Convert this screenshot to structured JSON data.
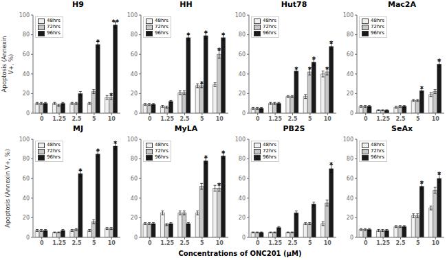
{
  "xlabel": "Concentrations of ONC201 (μM)",
  "chart_data": [
    {
      "type": "bar",
      "title": "H9",
      "ylabel": "Apoptosis (Annexin\nV+, %)",
      "categories": [
        "0",
        "1.25",
        "2.5",
        "5",
        "10"
      ],
      "series": [
        {
          "name": "48hrs",
          "color": "#f0f0f0",
          "values": [
            10,
            10,
            10,
            10,
            16
          ],
          "errors": [
            1,
            1,
            1,
            1,
            2
          ]
        },
        {
          "name": "72hrs",
          "color": "#c8c8c8",
          "values": [
            10,
            8,
            10,
            22,
            16
          ],
          "errors": [
            1,
            1,
            1,
            2,
            2
          ]
        },
        {
          "name": "96hrs",
          "color": "#1a1a1a",
          "values": [
            10,
            10,
            20,
            70,
            90
          ],
          "errors": [
            1,
            1,
            2,
            3,
            3
          ]
        }
      ],
      "annotations": [
        {
          "text": "*",
          "category": "5",
          "series": "96hrs"
        },
        {
          "text": "*",
          "category": "10",
          "series": "72hrs"
        },
        {
          "text": "**",
          "category": "10",
          "series": "96hrs"
        }
      ],
      "ylim": [
        0,
        100
      ],
      "yticks": [
        0,
        20,
        40,
        60,
        80,
        100
      ],
      "legend": "upper left",
      "grid": false
    },
    {
      "type": "bar",
      "title": "HH",
      "categories": [
        "0",
        "1.25",
        "2.5",
        "5",
        "10"
      ],
      "series": [
        {
          "name": "48hrs",
          "color": "#f0f0f0",
          "values": [
            9,
            7,
            21,
            28,
            29
          ],
          "errors": [
            1,
            1,
            2,
            2,
            2
          ]
        },
        {
          "name": "72hrs",
          "color": "#c8c8c8",
          "values": [
            9,
            6,
            21,
            28,
            60
          ],
          "errors": [
            1,
            1,
            2,
            2,
            4
          ]
        },
        {
          "name": "96hrs",
          "color": "#1a1a1a",
          "values": [
            9,
            12,
            77,
            79,
            77
          ],
          "errors": [
            1,
            1,
            3,
            3,
            3
          ]
        }
      ],
      "annotations": [
        {
          "text": "*",
          "category": "2.5",
          "series": "96hrs"
        },
        {
          "text": "*",
          "category": "5",
          "series": "72hrs"
        },
        {
          "text": "*",
          "category": "5",
          "series": "96hrs"
        },
        {
          "text": "*",
          "category": "10",
          "series": "72hrs"
        },
        {
          "text": "*",
          "category": "10",
          "series": "96hrs"
        }
      ],
      "ylim": [
        0,
        100
      ],
      "yticks": [
        0,
        20,
        40,
        60,
        80,
        100
      ],
      "legend": "upper left",
      "grid": false
    },
    {
      "type": "bar",
      "title": "Hut78",
      "categories": [
        "0",
        "1.25",
        "2.5",
        "5",
        "10"
      ],
      "series": [
        {
          "name": "48hrs",
          "color": "#f0f0f0",
          "values": [
            5,
            10,
            17,
            17,
            40
          ],
          "errors": [
            1,
            1,
            1,
            2,
            3
          ]
        },
        {
          "name": "72hrs",
          "color": "#c8c8c8",
          "values": [
            5,
            10,
            17,
            42,
            42
          ],
          "errors": [
            1,
            1,
            1,
            3,
            3
          ]
        },
        {
          "name": "96hrs",
          "color": "#1a1a1a",
          "values": [
            5,
            10,
            43,
            52,
            68
          ],
          "errors": [
            1,
            1,
            2,
            3,
            3
          ]
        }
      ],
      "annotations": [
        {
          "text": "*",
          "category": "2.5",
          "series": "96hrs"
        },
        {
          "text": "*",
          "category": "5",
          "series": "72hrs"
        },
        {
          "text": "*",
          "category": "5",
          "series": "96hrs"
        },
        {
          "text": "*",
          "category": "10",
          "series": "72hrs"
        },
        {
          "text": "*",
          "category": "10",
          "series": "96hrs"
        }
      ],
      "ylim": [
        0,
        100
      ],
      "yticks": [
        0,
        20,
        40,
        60,
        80,
        100
      ],
      "legend": "upper left",
      "grid": false
    },
    {
      "type": "bar",
      "title": "Mac2A",
      "categories": [
        "0",
        "1.25",
        "2.5",
        "5",
        "10"
      ],
      "series": [
        {
          "name": "48hrs",
          "color": "#f0f0f0",
          "values": [
            7,
            3,
            6,
            13,
            19
          ],
          "errors": [
            1,
            0.5,
            1,
            1,
            2
          ]
        },
        {
          "name": "72hrs",
          "color": "#c8c8c8",
          "values": [
            7,
            3,
            7,
            13,
            22
          ],
          "errors": [
            1,
            0.5,
            1,
            1,
            2
          ]
        },
        {
          "name": "96hrs",
          "color": "#1a1a1a",
          "values": [
            7,
            3,
            7,
            23,
            50
          ],
          "errors": [
            1,
            0.5,
            1,
            2,
            3
          ]
        }
      ],
      "annotations": [
        {
          "text": "*",
          "category": "5",
          "series": "96hrs"
        },
        {
          "text": "*",
          "category": "10",
          "series": "96hrs"
        }
      ],
      "ylim": [
        0,
        100
      ],
      "yticks": [
        0,
        20,
        40,
        60,
        80,
        100
      ],
      "legend": "upper left",
      "grid": false
    },
    {
      "type": "bar",
      "title": "MJ",
      "ylabel": "Apoptosis (Annexin V+, %)",
      "categories": [
        "0",
        "1.25",
        "2.5",
        "5",
        "10"
      ],
      "series": [
        {
          "name": "48hrs",
          "color": "#f0f0f0",
          "values": [
            7,
            5,
            7,
            7,
            9
          ],
          "errors": [
            1,
            0.5,
            1,
            1,
            1
          ]
        },
        {
          "name": "72hrs",
          "color": "#c8c8c8",
          "values": [
            7,
            5,
            8,
            16,
            9
          ],
          "errors": [
            1,
            0.5,
            1,
            2,
            1
          ]
        },
        {
          "name": "96hrs",
          "color": "#1a1a1a",
          "values": [
            7,
            7,
            65,
            85,
            93
          ],
          "errors": [
            1,
            1,
            3,
            3,
            3
          ]
        }
      ],
      "annotations": [
        {
          "text": "*",
          "category": "2.5",
          "series": "96hrs"
        },
        {
          "text": "*",
          "category": "5",
          "series": "96hrs"
        },
        {
          "text": "*",
          "category": "10",
          "series": "96hrs"
        }
      ],
      "ylim": [
        0,
        100
      ],
      "yticks": [
        0,
        20,
        40,
        60,
        80,
        100
      ],
      "legend": "upper left",
      "grid": false
    },
    {
      "type": "bar",
      "title": "MyLA",
      "categories": [
        "0",
        "1.25",
        "2.5",
        "5",
        "10"
      ],
      "series": [
        {
          "name": "48hrs",
          "color": "#f0f0f0",
          "values": [
            14,
            25,
            25,
            25,
            50
          ],
          "errors": [
            1,
            2,
            2,
            2,
            3
          ]
        },
        {
          "name": "72hrs",
          "color": "#c8c8c8",
          "values": [
            14,
            13,
            25,
            52,
            50
          ],
          "errors": [
            1,
            1,
            2,
            3,
            3
          ]
        },
        {
          "name": "96hrs",
          "color": "#1a1a1a",
          "values": [
            14,
            14,
            14,
            78,
            83
          ],
          "errors": [
            1,
            1,
            1,
            3,
            3
          ]
        }
      ],
      "annotations": [
        {
          "text": "*",
          "category": "5",
          "series": "96hrs"
        },
        {
          "text": "*",
          "category": "10",
          "series": "72hrs"
        },
        {
          "text": "*",
          "category": "10",
          "series": "96hrs"
        }
      ],
      "ylim": [
        0,
        100
      ],
      "yticks": [
        0,
        20,
        40,
        60,
        80,
        100
      ],
      "legend": "upper left",
      "grid": false
    },
    {
      "type": "bar",
      "title": "PB2S",
      "categories": [
        "0",
        "1.25",
        "2.5",
        "5",
        "10"
      ],
      "series": [
        {
          "name": "48hrs",
          "color": "#f0f0f0",
          "values": [
            5,
            5,
            5,
            14,
            14
          ],
          "errors": [
            0.5,
            0.5,
            0.5,
            1,
            2
          ]
        },
        {
          "name": "72hrs",
          "color": "#c8c8c8",
          "values": [
            5,
            5,
            5,
            14,
            35
          ],
          "errors": [
            0.5,
            0.5,
            0.5,
            1,
            3
          ]
        },
        {
          "name": "96hrs",
          "color": "#1a1a1a",
          "values": [
            5,
            10,
            25,
            34,
            70
          ],
          "errors": [
            0.5,
            1,
            2,
            2,
            4
          ]
        }
      ],
      "annotations": [
        {
          "text": "*",
          "category": "10",
          "series": "96hrs"
        }
      ],
      "ylim": [
        0,
        100
      ],
      "yticks": [
        0,
        20,
        40,
        60,
        80,
        100
      ],
      "legend": "upper left",
      "grid": false
    },
    {
      "type": "bar",
      "title": "SeAx",
      "categories": [
        "0",
        "1.25",
        "2.5",
        "5",
        "10"
      ],
      "series": [
        {
          "name": "48hrs",
          "color": "#f0f0f0",
          "values": [
            8,
            7,
            11,
            22,
            30
          ],
          "errors": [
            1,
            1,
            1,
            2,
            2
          ]
        },
        {
          "name": "72hrs",
          "color": "#c8c8c8",
          "values": [
            8,
            7,
            11,
            22,
            48
          ],
          "errors": [
            1,
            1,
            1,
            2,
            3
          ]
        },
        {
          "name": "96hrs",
          "color": "#1a1a1a",
          "values": [
            8,
            7,
            11,
            52,
            60
          ],
          "errors": [
            1,
            1,
            1,
            3,
            4
          ]
        }
      ],
      "annotations": [
        {
          "text": "*",
          "category": "5",
          "series": "96hrs"
        },
        {
          "text": "*",
          "category": "10",
          "series": "96hrs"
        }
      ],
      "ylim": [
        0,
        100
      ],
      "yticks": [
        0,
        20,
        40,
        60,
        80,
        100
      ],
      "legend": "upper left",
      "grid": false
    }
  ]
}
